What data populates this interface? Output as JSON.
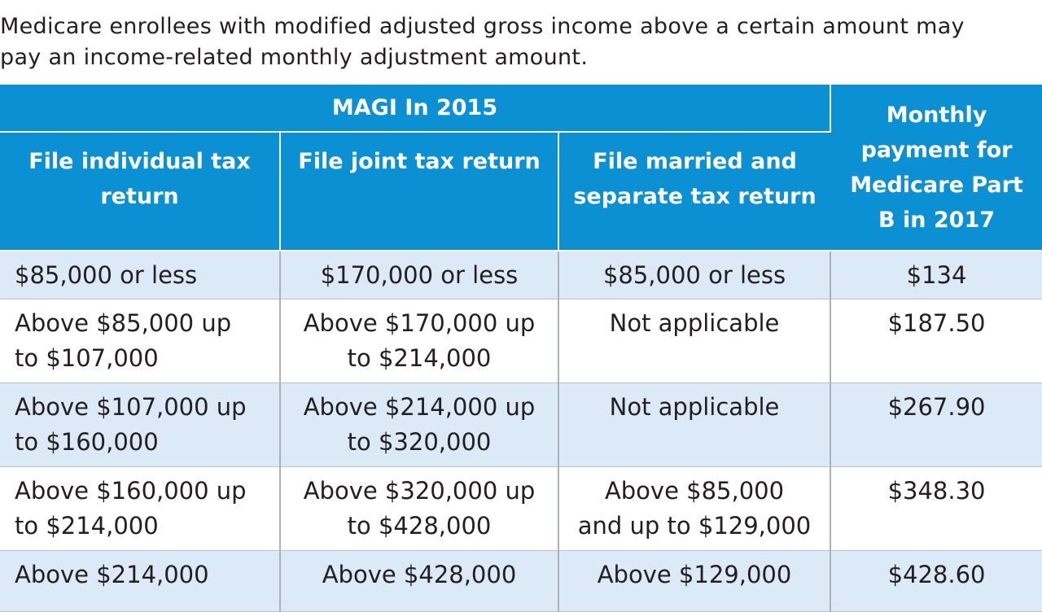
{
  "intro": {
    "line1": "Medicare enrollees with modified adjusted gross income above a certain amount may",
    "line2": "pay an income-related monthly adjustment amount."
  },
  "table": {
    "group_header": "MAGI In 2015",
    "columns": [
      [
        "File individual tax",
        "return"
      ],
      [
        "File joint tax return"
      ],
      [
        "File married and",
        "separate tax return"
      ]
    ],
    "payment_header": [
      "Monthly",
      "payment for",
      "Medicare Part",
      "B in 2017"
    ],
    "rows": [
      {
        "individual": [
          "$85,000 or less"
        ],
        "joint": [
          "$170,000 or less"
        ],
        "separate": [
          "$85,000 or less"
        ],
        "payment": "$134"
      },
      {
        "individual": [
          "Above $85,000 up",
          "to $107,000"
        ],
        "joint": [
          "Above $170,000 up",
          "to $214,000"
        ],
        "separate": [
          "Not applicable"
        ],
        "payment": "$187.50"
      },
      {
        "individual": [
          "Above $107,000 up",
          "to $160,000"
        ],
        "joint": [
          "Above $214,000 up",
          "to $320,000"
        ],
        "separate": [
          "Not applicable"
        ],
        "payment": "$267.90"
      },
      {
        "individual": [
          "Above $160,000 up",
          "to $214,000"
        ],
        "joint": [
          "Above $320,000 up",
          "to $428,000"
        ],
        "separate": [
          "Above $85,000",
          "and up to $129,000"
        ],
        "payment": "$348.30"
      },
      {
        "individual": [
          "Above $214,000"
        ],
        "joint": [
          "Above $428,000"
        ],
        "separate": [
          "Above $129,000"
        ],
        "payment": "$428.60"
      }
    ],
    "colors": {
      "header_bg": "#0a90d3",
      "header_text": "#ffffff",
      "row_shade": "#dbeaf6",
      "row_plain": "#ffffff"
    }
  }
}
